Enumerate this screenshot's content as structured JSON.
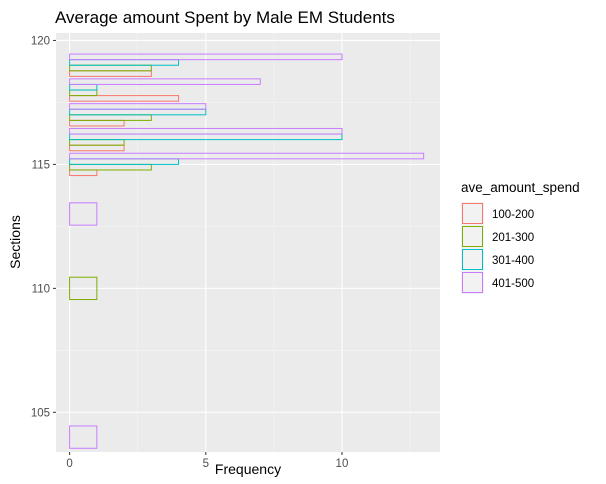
{
  "chart_data": {
    "type": "bar",
    "orientation": "horizontal",
    "title": "Average amount Spent by Male EM Students",
    "xlabel": "Frequency",
    "ylabel": "Sections",
    "xlim": [
      -0.5,
      13.6
    ],
    "ylim": [
      103.4,
      120.3
    ],
    "x_ticks": [
      0,
      5,
      10
    ],
    "y_ticks": [
      105,
      110,
      115,
      120
    ],
    "x_tick_labels": [
      "0",
      "5",
      "10"
    ],
    "y_tick_labels": [
      "105",
      "110",
      "115",
      "120"
    ],
    "grid": true,
    "legend": {
      "title": "ave_amount_spend",
      "position": "right",
      "entries": [
        {
          "label": "100-200",
          "color": "#F8766D"
        },
        {
          "label": "201-300",
          "color": "#7CAE00"
        },
        {
          "label": "301-400",
          "color": "#00BFC4"
        },
        {
          "label": "401-500",
          "color": "#C77CFF"
        }
      ]
    },
    "bars": [
      {
        "section": 104,
        "group": "401-500",
        "frequency": 1
      },
      {
        "section": 110,
        "group": "201-300",
        "frequency": 1
      },
      {
        "section": 113,
        "group": "401-500",
        "frequency": 1
      },
      {
        "section": 115,
        "group": "100-200",
        "frequency": 1
      },
      {
        "section": 115,
        "group": "201-300",
        "frequency": 3
      },
      {
        "section": 115,
        "group": "301-400",
        "frequency": 4
      },
      {
        "section": 115,
        "group": "401-500",
        "frequency": 13
      },
      {
        "section": 116,
        "group": "100-200",
        "frequency": 2
      },
      {
        "section": 116,
        "group": "201-300",
        "frequency": 2
      },
      {
        "section": 116,
        "group": "301-400",
        "frequency": 10
      },
      {
        "section": 116,
        "group": "401-500",
        "frequency": 10
      },
      {
        "section": 117,
        "group": "100-200",
        "frequency": 2
      },
      {
        "section": 117,
        "group": "201-300",
        "frequency": 3
      },
      {
        "section": 117,
        "group": "301-400",
        "frequency": 5
      },
      {
        "section": 117,
        "group": "401-500",
        "frequency": 5
      },
      {
        "section": 118,
        "group": "100-200",
        "frequency": 4
      },
      {
        "section": 118,
        "group": "201-300",
        "frequency": 1
      },
      {
        "section": 118,
        "group": "301-400",
        "frequency": 1
      },
      {
        "section": 118,
        "group": "401-500",
        "frequency": 7
      },
      {
        "section": 119,
        "group": "100-200",
        "frequency": 3
      },
      {
        "section": 119,
        "group": "201-300",
        "frequency": 3
      },
      {
        "section": 119,
        "group": "301-400",
        "frequency": 4
      },
      {
        "section": 119,
        "group": "401-500",
        "frequency": 10
      }
    ]
  }
}
